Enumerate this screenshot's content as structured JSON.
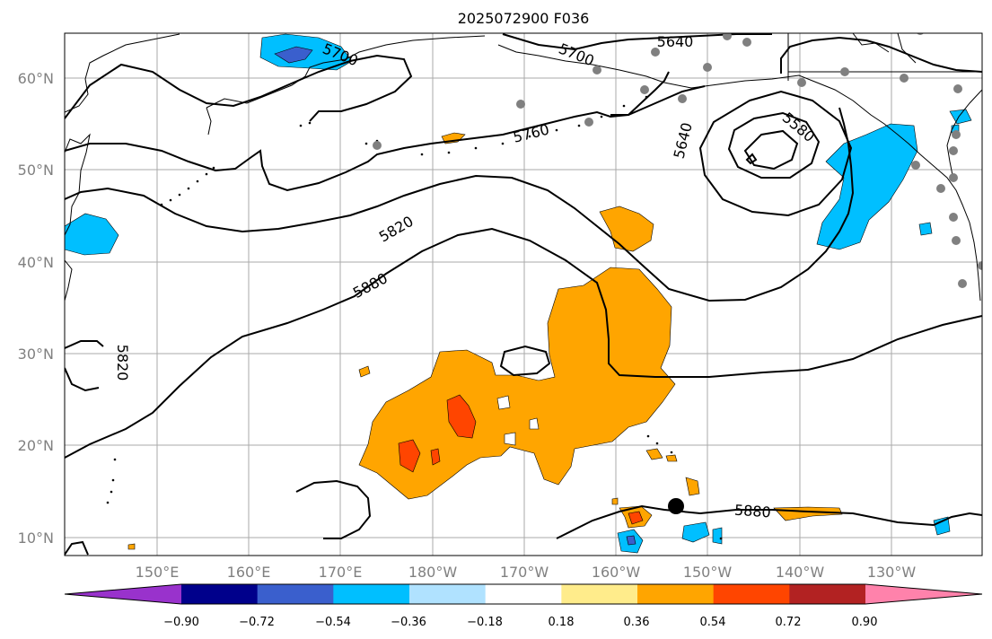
{
  "title": "2025072900 F036",
  "lat_labels": [
    "60°N",
    "50°N",
    "40°N",
    "30°N",
    "20°N",
    "10°N"
  ],
  "lon_labels": [
    "150°E",
    "160°E",
    "170°E",
    "180°W",
    "170°W",
    "160°W",
    "150°W",
    "140°W",
    "130°W"
  ],
  "contour_labels": [
    "5640",
    "5700",
    "5700",
    "5760",
    "5580",
    "5640",
    "5820",
    "5880",
    "5820",
    "5880"
  ],
  "colorbar": {
    "colors": [
      "#9932cc",
      "#00008b",
      "#3a5fcd",
      "#00bfff",
      "#b0e2ff",
      "#ffffff",
      "#ffec8b",
      "#ffa500",
      "#ff4500",
      "#b22222",
      "#ff82ab"
    ],
    "tick_labels": [
      "−0.90",
      "−0.72",
      "−0.54",
      "−0.36",
      "−0.18",
      "0.18",
      "0.36",
      "0.54",
      "0.72",
      "0.90"
    ]
  }
}
